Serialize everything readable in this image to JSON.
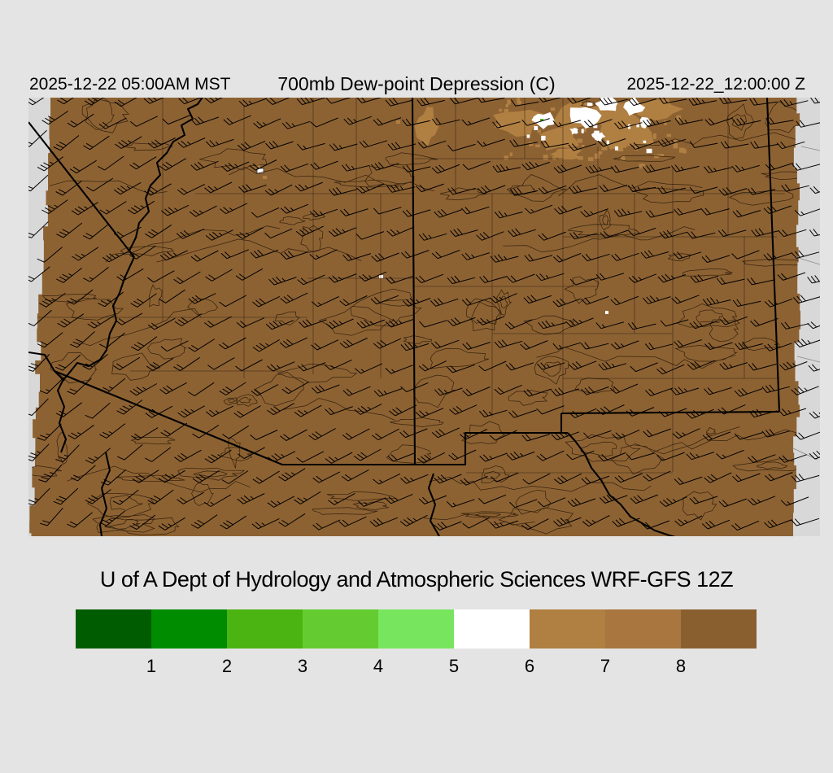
{
  "header": {
    "left_timestamp": "2025-12-22 05:00AM MST",
    "title": "700mb Dew-point Depression (C)",
    "right_timestamp": "2025-12-22_12:00:00 Z"
  },
  "footer": {
    "caption": "U of A Dept of Hydrology and Atmospheric Sciences WRF-GFS 12Z"
  },
  "colorbar": {
    "tick_labels": [
      "1",
      "2",
      "3",
      "4",
      "5",
      "6",
      "7",
      "8"
    ],
    "segment_colors": [
      "#005c00",
      "#008c00",
      "#4cb412",
      "#64cc30",
      "#77e65e",
      "#ffffff",
      "#b07f42",
      "#a8763e",
      "#8a5f30"
    ]
  },
  "map": {
    "margin_color": "#d8d8d8",
    "field_fill_color": "#8d6233",
    "light_patch_color": "#b07f42",
    "clear_patch_color": "#ffffff",
    "green_patch_color": "#4cb412",
    "wind_barb_color": "#000000",
    "contour_color": "#2e1d0a",
    "border_color": "#000000"
  },
  "chart_data": {
    "type": "heatmap",
    "title": "700mb Dew-point Depression (C)",
    "units": "C",
    "model": "WRF-GFS 12Z",
    "init_local_time": "2025-12-22 05:00AM MST",
    "valid_time_utc": "2025-12-22_12:00:00 Z",
    "legend_position": "bottom",
    "colorbar_ticks": [
      1,
      2,
      3,
      4,
      5,
      6,
      7,
      8
    ],
    "colorbar_colors": [
      "#005c00",
      "#008c00",
      "#4cb412",
      "#64cc30",
      "#77e65e",
      "#ffffff",
      "#b07f42",
      "#a8763e",
      "#8a5f30"
    ],
    "field_summary": "Dew-point depression of 7 to over 8 C (brown shades) covers nearly the entire Arizona / New Mexico domain; small 5-6 C (white) patches appear in the north-central part of the domain; overlaid wind barbs show generally west-to-southwest flow of roughly 10-25 kt"
  }
}
